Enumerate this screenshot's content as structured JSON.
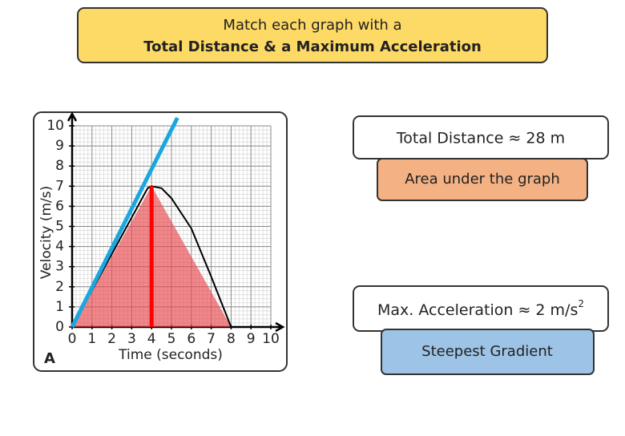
{
  "header": {
    "line1": "Match each graph with a",
    "line2": "Total Distance  & a Maximum Acceleration"
  },
  "chart_data": {
    "type": "line",
    "label": "A",
    "x_label": "Time (seconds)",
    "y_label": "Velocity (m/s)",
    "xlim": [
      0,
      10
    ],
    "ylim": [
      0,
      10
    ],
    "xticks": [
      0,
      1,
      2,
      3,
      4,
      5,
      6,
      7,
      8,
      9,
      10
    ],
    "yticks": [
      0,
      1,
      2,
      3,
      4,
      5,
      6,
      7,
      8,
      9,
      10
    ],
    "grid": true,
    "series": [
      {
        "color": "#e8474d",
        "fill": true,
        "x": [
          0,
          4,
          8
        ],
        "values": [
          0,
          7,
          0
        ]
      },
      {
        "color": "#000000",
        "x": [
          0,
          3.8,
          4,
          4.5,
          5,
          6,
          7,
          8
        ],
        "values": [
          0,
          6.9,
          7,
          6.9,
          6.4,
          4.9,
          2.5,
          0
        ]
      },
      {
        "color": "#ff0000",
        "x": [
          4,
          4
        ],
        "values": [
          0,
          7
        ]
      },
      {
        "color": "#1aa7e0",
        "x": [
          0,
          5.3
        ],
        "values": [
          0,
          10.4
        ]
      }
    ]
  },
  "cards": {
    "total_distance": "Total Distance ≈ 28 m",
    "area_hint": "Area under the graph",
    "max_accel": {
      "text": "Max. Acceleration  ≈ 2 m/s",
      "superscript": "2"
    },
    "gradient_hint": "Steepest Gradient"
  }
}
